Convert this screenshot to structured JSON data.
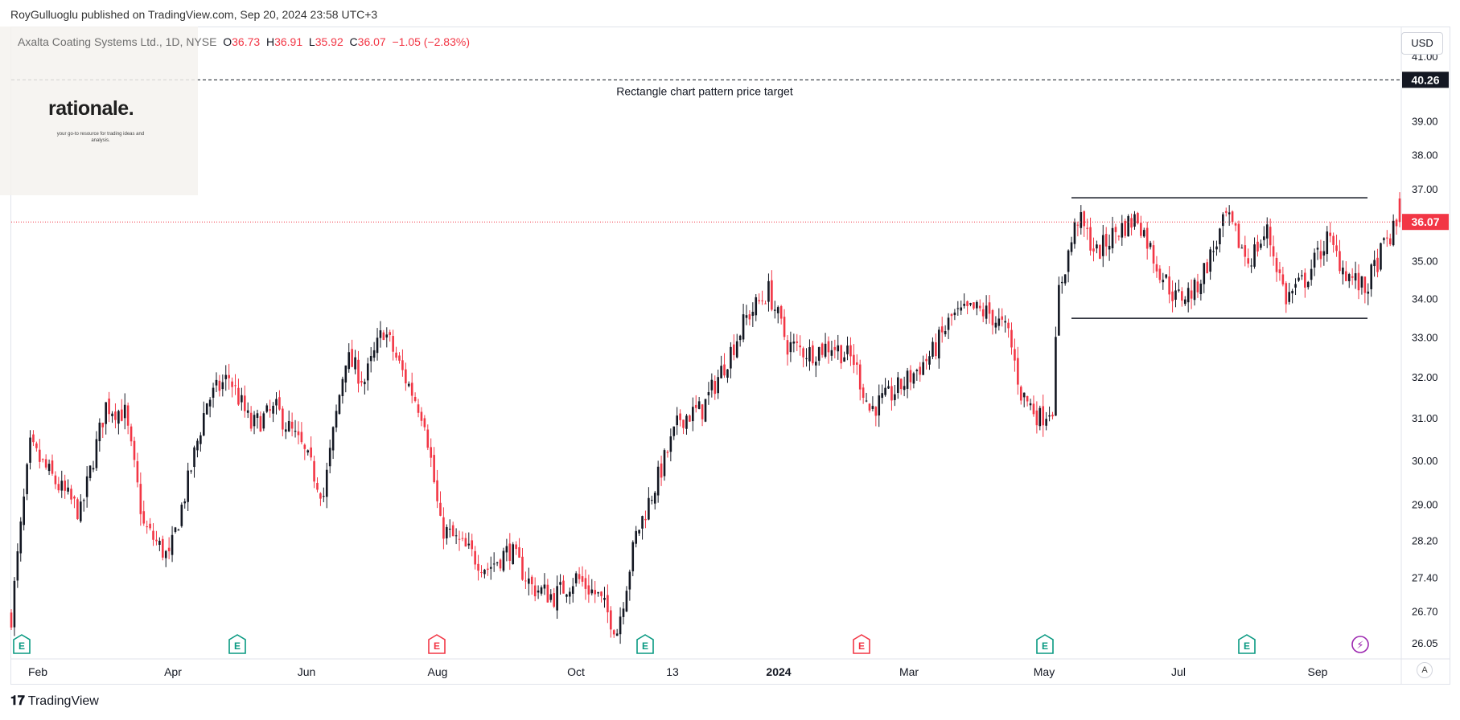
{
  "header": {
    "published": "RoyGulluoglu published on TradingView.com, Sep 20, 2024 23:58 UTC+3"
  },
  "legend": {
    "symbol": "Axalta Coating Systems Ltd., 1D, NYSE",
    "o_label": "O",
    "o": "36.73",
    "h_label": "H",
    "h": "36.91",
    "l_label": "L",
    "l": "35.92",
    "c_label": "C",
    "c": "36.07",
    "change": "−1.05 (−2.83%)"
  },
  "watermark": {
    "brand": "rationale.",
    "tagline": "your go-to resource for trading ideas and analysis."
  },
  "currency_button": "USD",
  "auto_scale_button": "A",
  "footer": {
    "brand": "TradingView"
  },
  "colors": {
    "up": "#131722",
    "down": "#f23645",
    "earnings_up": "#089981",
    "earnings_down": "#f23645",
    "dividend": "#9c27b0"
  },
  "chart_data": {
    "type": "candlestick",
    "price_axis": {
      "ticks": [
        "41.00",
        "40.26",
        "39.00",
        "38.00",
        "37.00",
        "36.07",
        "35.00",
        "34.00",
        "33.00",
        "32.00",
        "31.00",
        "30.00",
        "29.00",
        "28.20",
        "27.40",
        "26.70",
        "26.05"
      ],
      "current_price": "36.07",
      "target_price": "40.26",
      "ylim": [
        26.05,
        41.0
      ],
      "scale": "log"
    },
    "time_axis": {
      "ticks": [
        "Feb",
        "Apr",
        "Jun",
        "Aug",
        "Oct",
        "13",
        "2024",
        "Mar",
        "May",
        "Jul",
        "Sep"
      ]
    },
    "annotations": {
      "target_label": "Rectangle chart pattern price target",
      "rectangle_top": 36.75,
      "rectangle_bottom": 33.48
    },
    "events": [
      {
        "type": "earnings",
        "kind": "up",
        "label": "E",
        "date": "Feb 1"
      },
      {
        "type": "earnings",
        "kind": "up",
        "label": "E",
        "date": "Apr 25"
      },
      {
        "type": "earnings",
        "kind": "down",
        "label": "E",
        "date": "Aug 1"
      },
      {
        "type": "earnings",
        "kind": "up",
        "label": "E",
        "date": "Oct 31"
      },
      {
        "type": "earnings",
        "kind": "down",
        "label": "E",
        "date": "Feb 1, 2024"
      },
      {
        "type": "earnings",
        "kind": "up",
        "label": "E",
        "date": "May 1, 2024"
      },
      {
        "type": "earnings",
        "kind": "up",
        "label": "E",
        "date": "Jul 30, 2024"
      },
      {
        "type": "dividend",
        "label": "⚡",
        "date": "Sep 2024"
      }
    ],
    "close_path": [
      [
        0,
        26.6
      ],
      [
        12,
        30.3
      ],
      [
        30,
        29.4
      ],
      [
        44,
        28.8
      ],
      [
        60,
        31.3
      ],
      [
        72,
        31.1
      ],
      [
        84,
        28.5
      ],
      [
        100,
        27.8
      ],
      [
        112,
        29.5
      ],
      [
        124,
        31.4
      ],
      [
        138,
        32.0
      ],
      [
        152,
        30.8
      ],
      [
        168,
        31.2
      ],
      [
        184,
        30.3
      ],
      [
        198,
        29.2
      ],
      [
        212,
        32.5
      ],
      [
        224,
        31.9
      ],
      [
        236,
        33.2
      ],
      [
        248,
        32.1
      ],
      [
        262,
        31.0
      ],
      [
        272,
        28.5
      ],
      [
        288,
        28.0
      ],
      [
        302,
        27.6
      ],
      [
        316,
        28.0
      ],
      [
        330,
        27.2
      ],
      [
        344,
        27.0
      ],
      [
        358,
        27.4
      ],
      [
        372,
        27.0
      ],
      [
        384,
        26.3
      ],
      [
        396,
        28.3
      ],
      [
        410,
        29.6
      ],
      [
        424,
        31.0
      ],
      [
        438,
        31.2
      ],
      [
        452,
        32.3
      ],
      [
        466,
        33.5
      ],
      [
        480,
        34.2
      ],
      [
        492,
        32.8
      ],
      [
        506,
        32.6
      ],
      [
        520,
        32.8
      ],
      [
        534,
        32.4
      ],
      [
        544,
        31.2
      ],
      [
        556,
        31.5
      ],
      [
        570,
        32.0
      ],
      [
        584,
        32.6
      ],
      [
        596,
        33.5
      ],
      [
        610,
        33.7
      ],
      [
        620,
        33.6
      ],
      [
        632,
        33.1
      ],
      [
        640,
        31.6
      ],
      [
        652,
        31.0
      ],
      [
        660,
        31.3
      ],
      [
        664,
        34.2
      ],
      [
        676,
        36.2
      ],
      [
        688,
        35.2
      ],
      [
        700,
        35.8
      ],
      [
        714,
        36.2
      ],
      [
        726,
        34.9
      ],
      [
        738,
        34.0
      ],
      [
        750,
        34.2
      ],
      [
        762,
        35.3
      ],
      [
        770,
        36.2
      ],
      [
        784,
        35.0
      ],
      [
        796,
        35.8
      ],
      [
        808,
        34.0
      ],
      [
        820,
        34.5
      ],
      [
        834,
        35.6
      ],
      [
        846,
        34.7
      ],
      [
        858,
        34.2
      ],
      [
        870,
        35.4
      ],
      [
        880,
        36.07
      ]
    ]
  }
}
